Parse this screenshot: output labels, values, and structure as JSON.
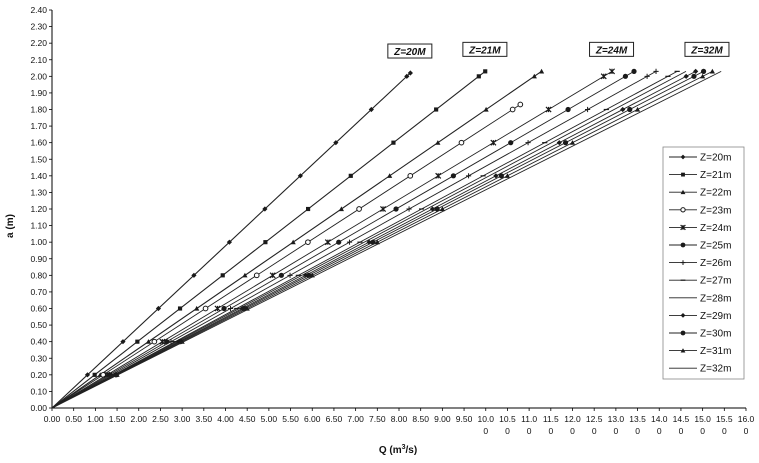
{
  "chart_data": {
    "type": "line",
    "xlabel": "Q (m",
    "xlabel_sup": "3",
    "xlabel_tail": "/s)",
    "ylabel": "a (m)",
    "xlim": [
      0,
      16
    ],
    "ylim": [
      0,
      2.4
    ],
    "grid": false,
    "legend_position": "right",
    "y_ticks": [
      "0.00",
      "0.10",
      "0.20",
      "0.30",
      "0.40",
      "0.50",
      "0.60",
      "0.70",
      "0.80",
      "0.90",
      "1.00",
      "1.10",
      "1.20",
      "1.30",
      "1.40",
      "1.50",
      "1.60",
      "1.70",
      "1.80",
      "1.90",
      "2.00",
      "2.10",
      "2.20",
      "2.30",
      "2.40"
    ],
    "x_ticks": [
      {
        "value": 0.0,
        "l1": "0.00",
        "l2": ""
      },
      {
        "value": 0.5,
        "l1": "0.50",
        "l2": ""
      },
      {
        "value": 1.0,
        "l1": "1.00",
        "l2": ""
      },
      {
        "value": 1.5,
        "l1": "1.50",
        "l2": ""
      },
      {
        "value": 2.0,
        "l1": "2.00",
        "l2": ""
      },
      {
        "value": 2.5,
        "l1": "2.50",
        "l2": ""
      },
      {
        "value": 3.0,
        "l1": "3.00",
        "l2": ""
      },
      {
        "value": 3.5,
        "l1": "3.50",
        "l2": ""
      },
      {
        "value": 4.0,
        "l1": "4.00",
        "l2": ""
      },
      {
        "value": 4.5,
        "l1": "4.50",
        "l2": ""
      },
      {
        "value": 5.0,
        "l1": "5.00",
        "l2": ""
      },
      {
        "value": 5.5,
        "l1": "5.50",
        "l2": ""
      },
      {
        "value": 6.0,
        "l1": "6.00",
        "l2": ""
      },
      {
        "value": 6.5,
        "l1": "6.50",
        "l2": ""
      },
      {
        "value": 7.0,
        "l1": "7.00",
        "l2": ""
      },
      {
        "value": 7.5,
        "l1": "7.50",
        "l2": ""
      },
      {
        "value": 8.0,
        "l1": "8.00",
        "l2": ""
      },
      {
        "value": 8.5,
        "l1": "8.50",
        "l2": ""
      },
      {
        "value": 9.0,
        "l1": "9.00",
        "l2": ""
      },
      {
        "value": 9.5,
        "l1": "9.50",
        "l2": ""
      },
      {
        "value": 10.0,
        "l1": "10.0",
        "l2": "0"
      },
      {
        "value": 10.5,
        "l1": "10.5",
        "l2": "0"
      },
      {
        "value": 11.0,
        "l1": "11.0",
        "l2": "0"
      },
      {
        "value": 11.5,
        "l1": "11.5",
        "l2": "0"
      },
      {
        "value": 12.0,
        "l1": "12.0",
        "l2": "0"
      },
      {
        "value": 12.5,
        "l1": "12.5",
        "l2": "0"
      },
      {
        "value": 13.0,
        "l1": "13.0",
        "l2": "0"
      },
      {
        "value": 13.5,
        "l1": "13.5",
        "l2": "0"
      },
      {
        "value": 14.0,
        "l1": "14.0",
        "l2": "0"
      },
      {
        "value": 14.5,
        "l1": "14.5",
        "l2": "0"
      },
      {
        "value": 15.0,
        "l1": "15.0",
        "l2": "0"
      },
      {
        "value": 15.5,
        "l1": "15.5",
        "l2": "0"
      },
      {
        "value": 16.0,
        "l1": "16.0",
        "l2": "0"
      }
    ],
    "a_values": [
      0,
      0.2,
      0.4,
      0.6,
      0.8,
      1.0,
      1.2,
      1.4,
      1.6,
      1.8,
      2.0
    ],
    "series": [
      {
        "name": "Z=20m",
        "marker": "diamond",
        "q_per_m": 4.09,
        "end_a": 2.02
      },
      {
        "name": "Z=21m",
        "marker": "square",
        "q_per_m": 4.92,
        "end_a": 2.03
      },
      {
        "name": "Z=22m",
        "marker": "triangle",
        "q_per_m": 5.56,
        "end_a": 2.03
      },
      {
        "name": "Z=23m",
        "marker": "circle-open",
        "q_per_m": 5.9,
        "end_a": 1.83
      },
      {
        "name": "Z=24m",
        "marker": "x",
        "q_per_m": 6.36,
        "end_a": 2.03
      },
      {
        "name": "Z=25m",
        "marker": "circle",
        "q_per_m": 6.61,
        "end_a": 2.03
      },
      {
        "name": "Z=26m",
        "marker": "plus",
        "q_per_m": 6.86,
        "end_a": 2.03
      },
      {
        "name": "Z=27m",
        "marker": "dash",
        "q_per_m": 7.1,
        "end_a": 2.03
      },
      {
        "name": "Z=28m",
        "marker": "none",
        "q_per_m": 7.2,
        "end_a": 2.03
      },
      {
        "name": "Z=29m",
        "marker": "diamond",
        "q_per_m": 7.31,
        "end_a": 2.03
      },
      {
        "name": "Z=30m",
        "marker": "circle",
        "q_per_m": 7.4,
        "end_a": 2.03
      },
      {
        "name": "Z=31m",
        "marker": "triangle",
        "q_per_m": 7.5,
        "end_a": 2.03
      },
      {
        "name": "Z=32m",
        "marker": "none",
        "q_per_m": 7.6,
        "end_a": 2.03
      }
    ],
    "callouts": [
      {
        "text": "Z=20M",
        "q": 8.25,
        "a": 2.02
      },
      {
        "text": "Z=21M",
        "q": 9.98,
        "a": 2.03
      },
      {
        "text": "Z=24M",
        "q": 12.9,
        "a": 2.03
      },
      {
        "text": "Z=32M",
        "q": 15.1,
        "a": 2.03
      }
    ]
  }
}
